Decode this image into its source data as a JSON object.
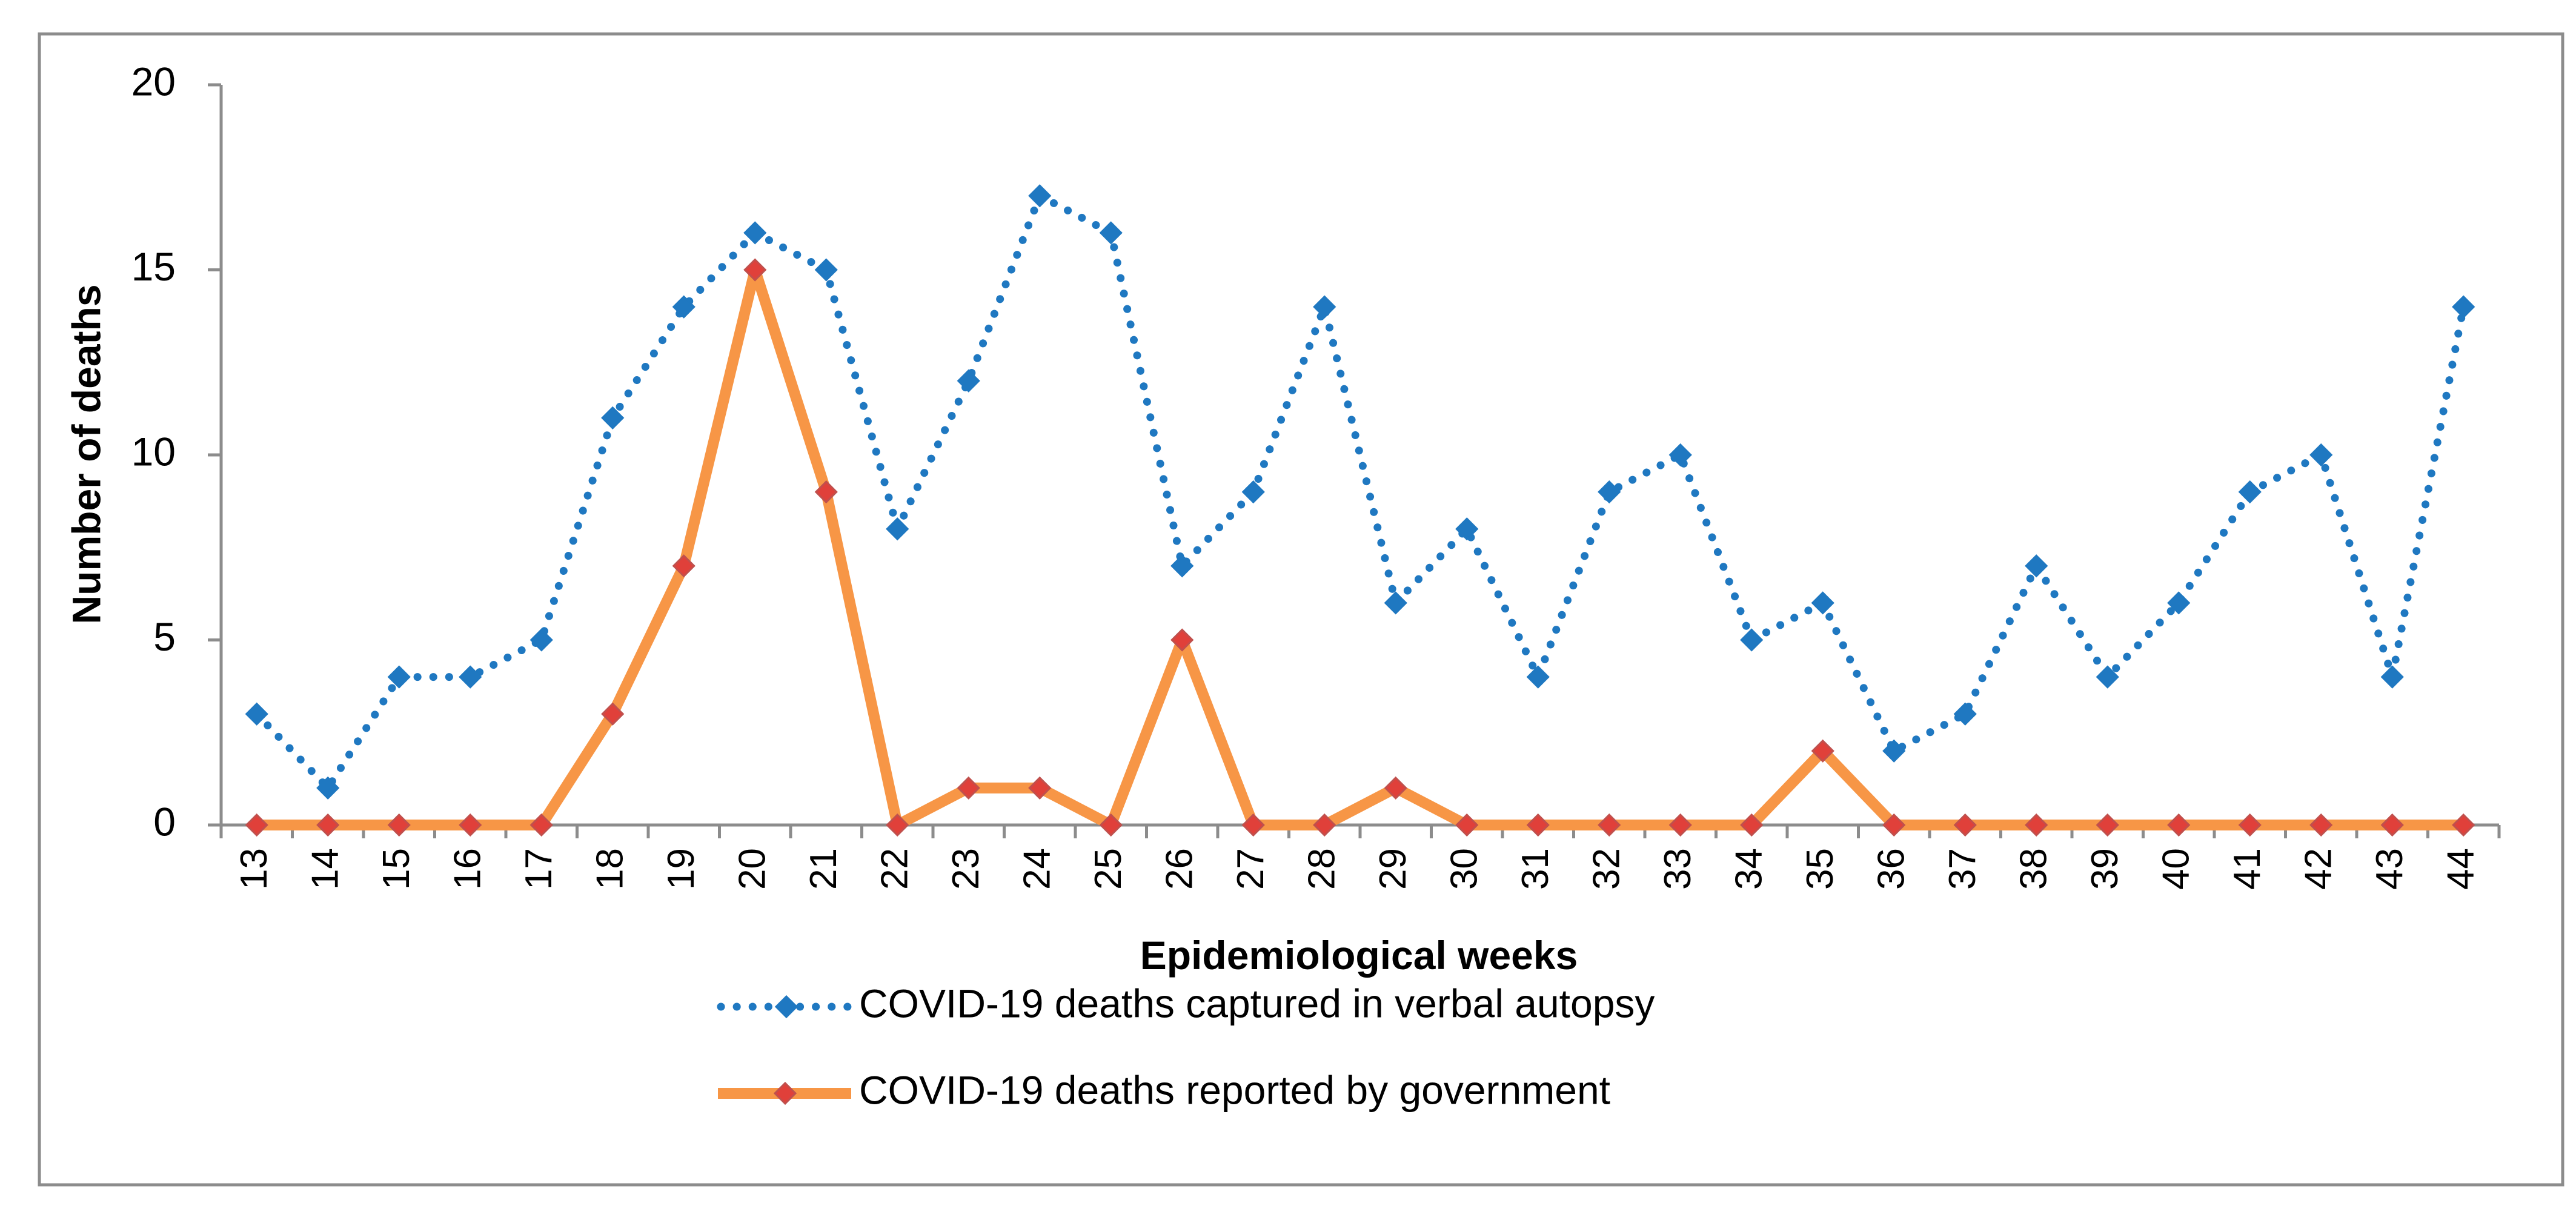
{
  "chart_data": {
    "type": "line",
    "title": "",
    "xlabel": "Epidemiological weeks",
    "ylabel": "Number of deaths",
    "ylim": [
      0,
      20
    ],
    "yticks": [
      0,
      5,
      10,
      15,
      20
    ],
    "grid": false,
    "legend_position": "bottom-center",
    "categories": [
      "13",
      "14",
      "15",
      "16",
      "17",
      "18",
      "19",
      "20",
      "21",
      "22",
      "23",
      "24",
      "25",
      "26",
      "27",
      "28",
      "29",
      "30",
      "31",
      "32",
      "33",
      "34",
      "35",
      "36",
      "37",
      "38",
      "39",
      "40",
      "41",
      "42",
      "43",
      "44"
    ],
    "series": [
      {
        "name": "COVID-19 deaths captured in verbal autopsy",
        "style": "dotted",
        "color": "#1F78C1",
        "marker_color": "#1F78C1",
        "values": [
          3,
          1,
          4,
          4,
          5,
          11,
          14,
          16,
          15,
          8,
          12,
          17,
          16,
          7,
          9,
          14,
          6,
          8,
          4,
          9,
          10,
          5,
          6,
          2,
          3,
          7,
          4,
          6,
          9,
          10,
          4,
          14
        ]
      },
      {
        "name": "COVID-19 deaths  reported by government",
        "style": "solid",
        "color": "#F79646",
        "marker_color": "#E0403A",
        "values": [
          0,
          0,
          0,
          0,
          0,
          3,
          7,
          15,
          9,
          0,
          1,
          1,
          0,
          5,
          0,
          0,
          1,
          0,
          0,
          0,
          0,
          0,
          2,
          0,
          0,
          0,
          0,
          0,
          0,
          0,
          0,
          0
        ]
      }
    ]
  }
}
